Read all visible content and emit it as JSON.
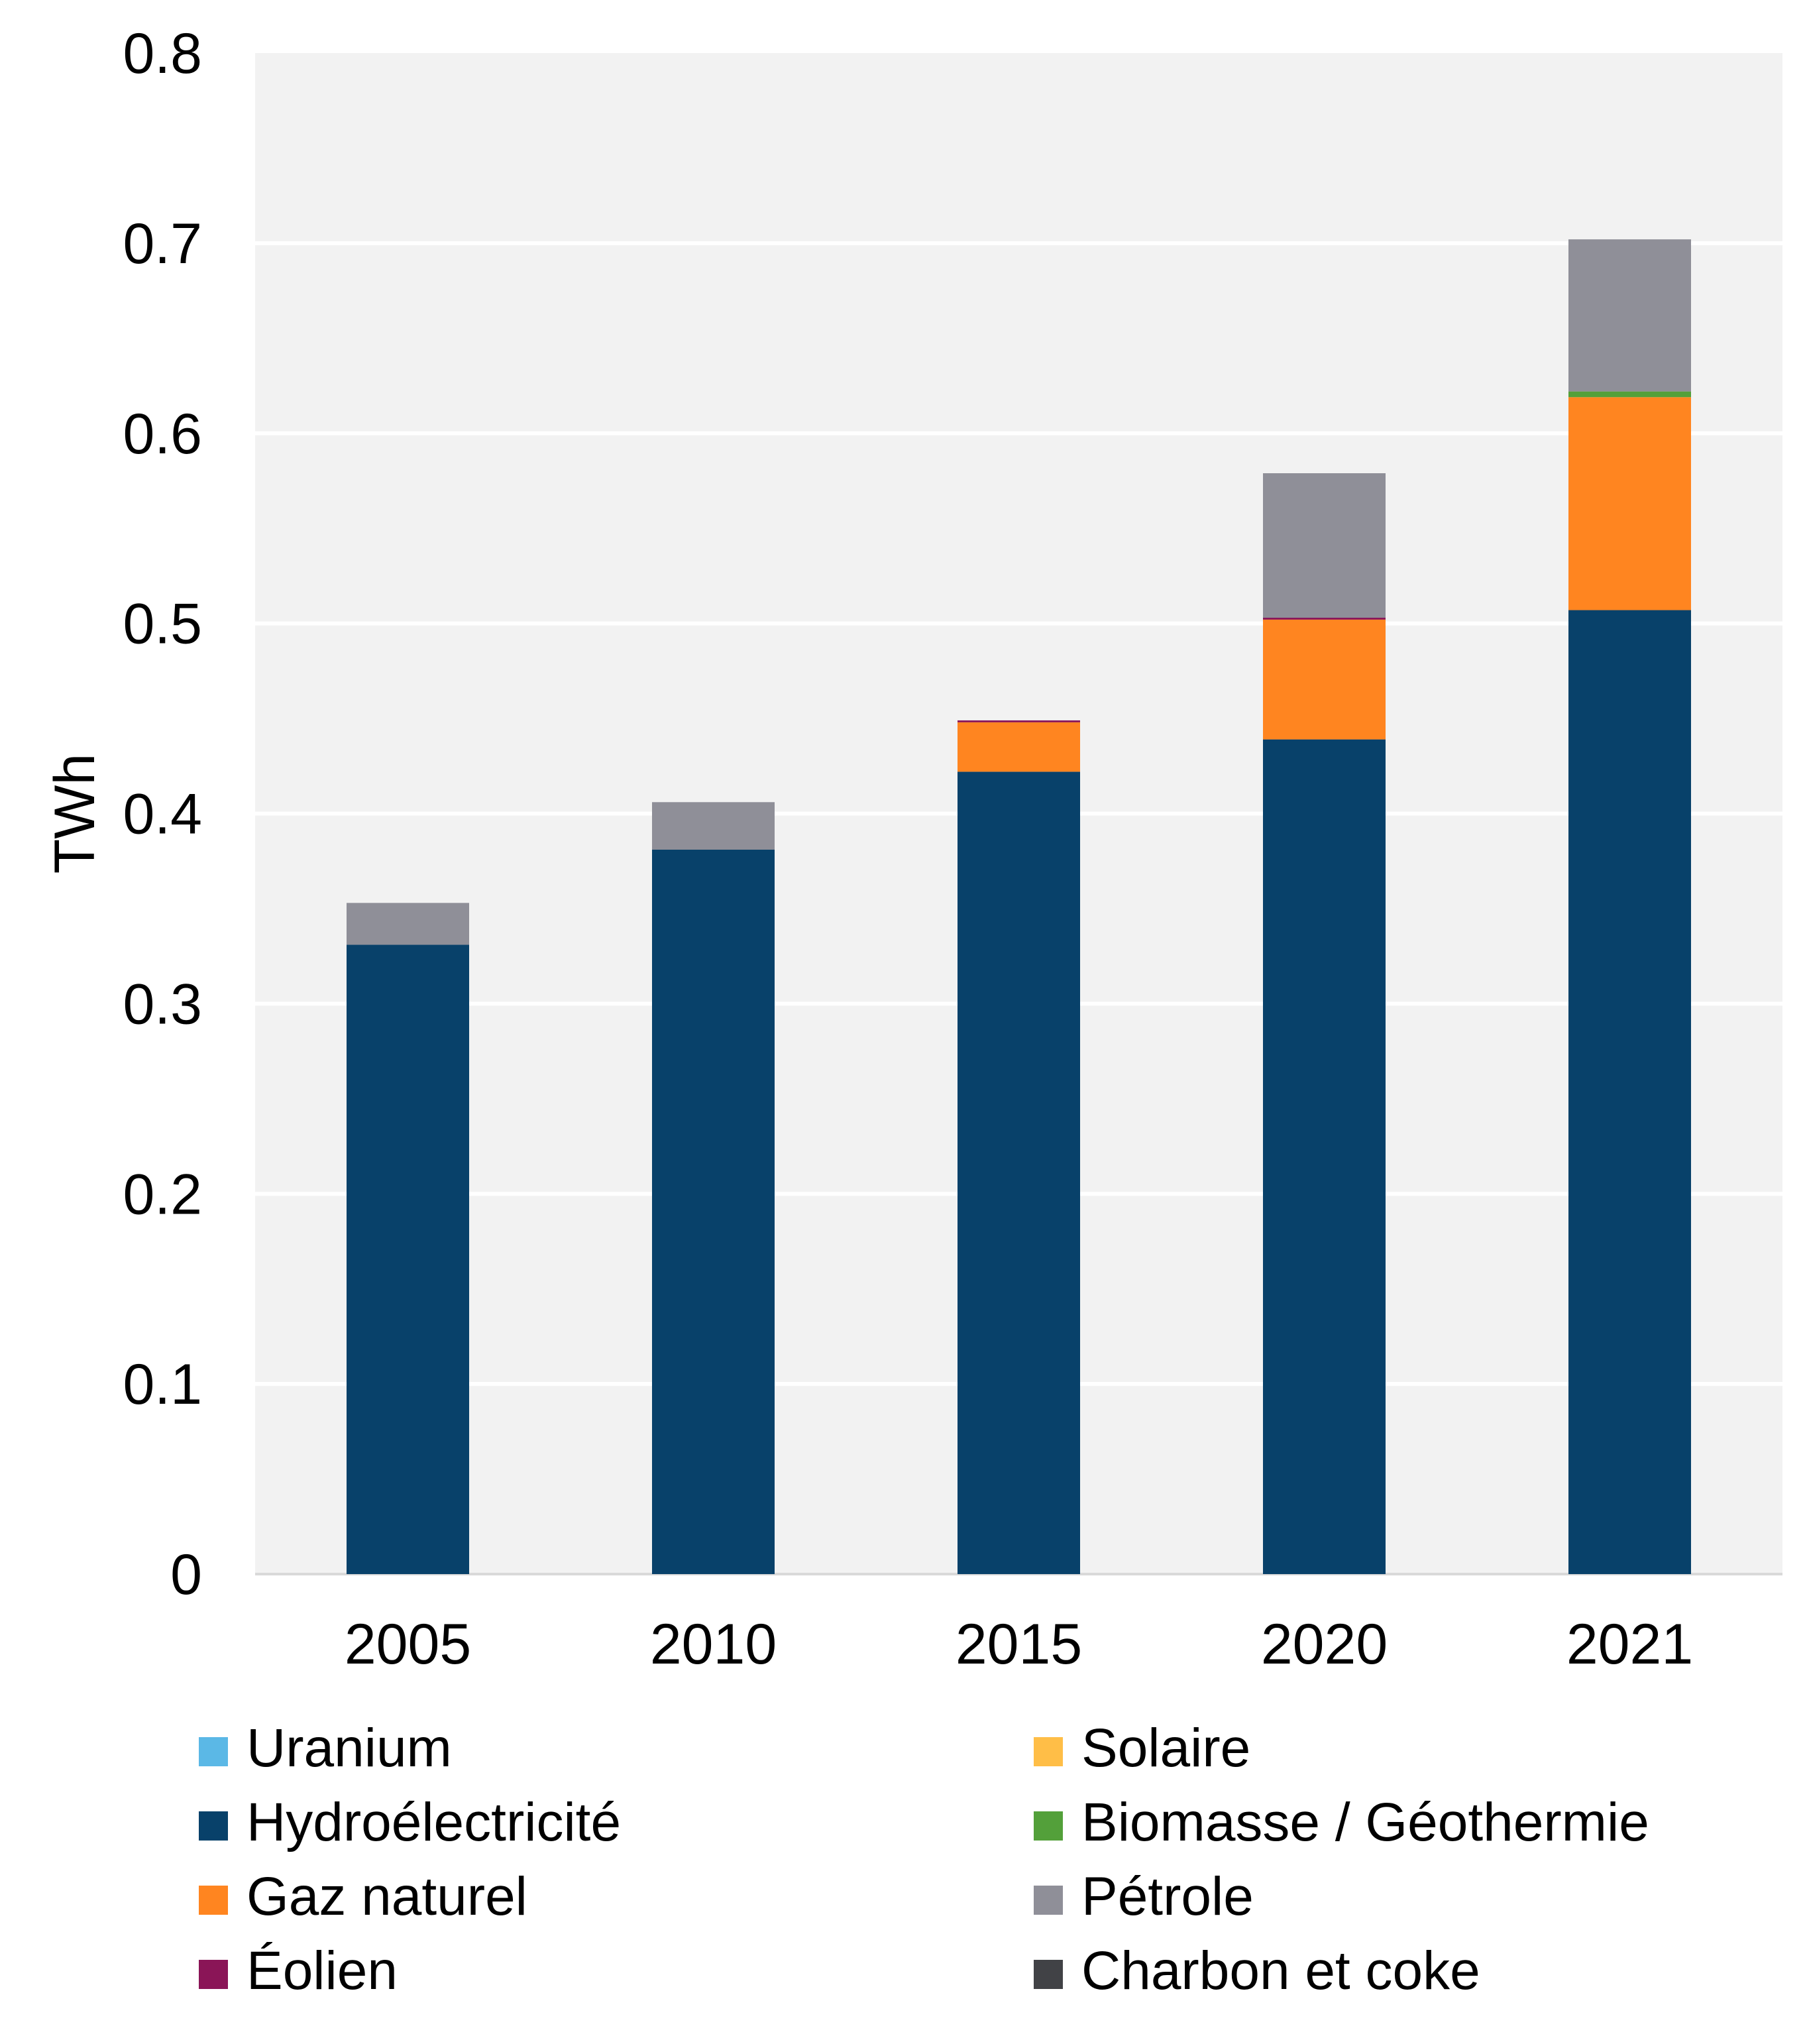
{
  "chart_data": {
    "type": "bar",
    "stacked": true,
    "title": "",
    "xlabel": "",
    "ylabel": "TWh",
    "ylim": [
      0,
      0.8
    ],
    "yticks": [
      "0",
      "0.1",
      "0.2",
      "0.3",
      "0.4",
      "0.5",
      "0.6",
      "0.7",
      "0.8"
    ],
    "grid": true,
    "legend_position": "bottom",
    "categories": [
      "2005",
      "2010",
      "2015",
      "2020",
      "2021"
    ],
    "series": [
      {
        "name": "Uranium",
        "color": "#5BB8E6",
        "values": [
          0,
          0,
          0,
          0,
          0
        ]
      },
      {
        "name": "Hydroélectricité",
        "color": "#08416A",
        "values": [
          0.331,
          0.381,
          0.422,
          0.439,
          0.507
        ]
      },
      {
        "name": "Gaz naturel",
        "color": "#FF8520",
        "values": [
          0,
          0,
          0.026,
          0.063,
          0.112
        ]
      },
      {
        "name": "Éolien",
        "color": "#8A1557",
        "values": [
          0,
          0,
          0.001,
          0.001,
          0
        ]
      },
      {
        "name": "Solaire",
        "color": "#FFBE47",
        "values": [
          0,
          0,
          0,
          0,
          0
        ]
      },
      {
        "name": "Biomasse / Géothermie",
        "color": "#53A03A",
        "values": [
          0,
          0,
          0,
          0,
          0.003
        ]
      },
      {
        "name": "Pétrole",
        "color": "#8F8F98",
        "values": [
          0.022,
          0.025,
          0,
          0.076,
          0.08
        ]
      },
      {
        "name": "Charbon et coke",
        "color": "#414246",
        "values": [
          0,
          0,
          0,
          0,
          0
        ]
      }
    ],
    "colors": {
      "plot_background": "#F2F2F2",
      "gridline": "#FFFFFF",
      "baseline": "#D9D9D9"
    }
  }
}
